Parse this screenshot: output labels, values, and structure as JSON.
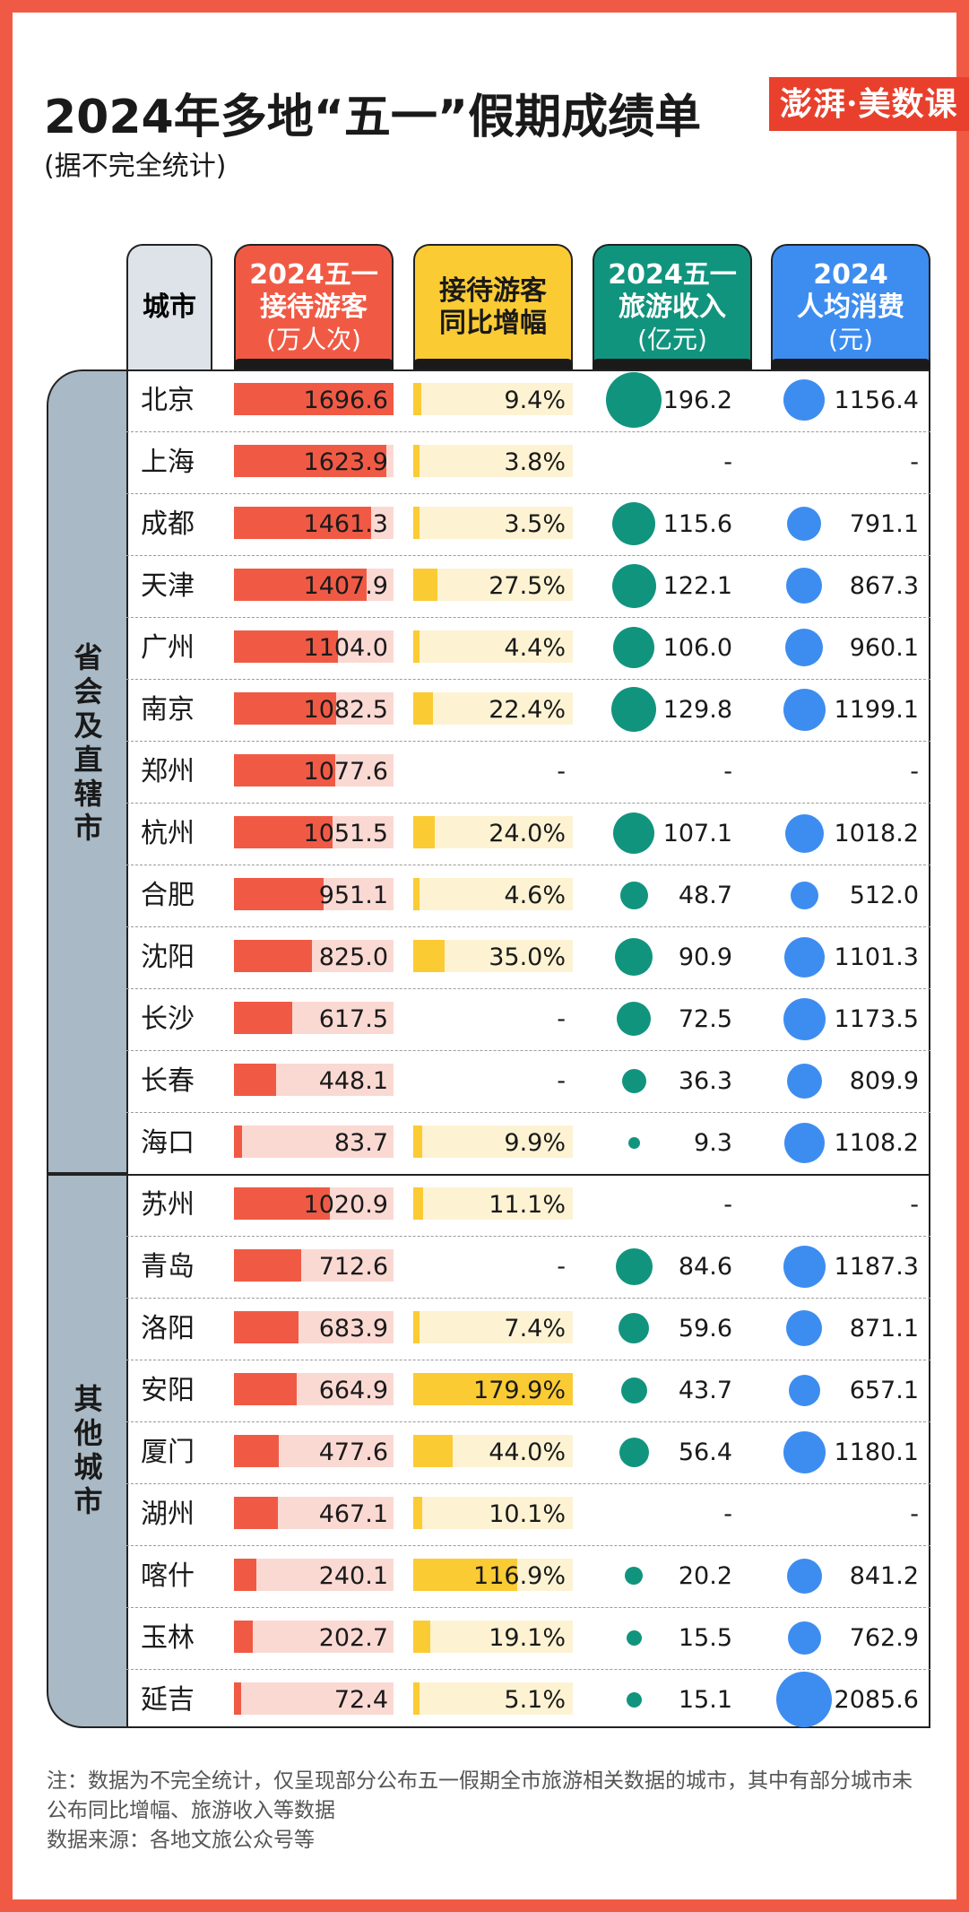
{
  "title": "2024年多地“五一”假期成绩单",
  "subtitle": "(据不完全统计)",
  "logo": "澎湃·美数课",
  "headers": {
    "city": "城市",
    "visitors": "2024五一\n接待游客",
    "visitors_unit": "(万人次)",
    "growth": "接待游客\n同比增幅",
    "revenue": "2024五一\n旅游收入",
    "revenue_unit": "(亿元)",
    "spend": "2024\n人均消费",
    "spend_unit": "(元)"
  },
  "groups": {
    "capital": "省会及直辖市",
    "other": "其他城市"
  },
  "colors": {
    "frame": "#f05a45",
    "visitors": "#f05a45",
    "growth": "#fbcb34",
    "revenue": "#11947e",
    "spend": "#3d8df0",
    "group": "#a9b9c5"
  },
  "note": "注：数据为不完全统计，仅呈现部分公布五一假期全市旅游相关数据的城市，其中有部分城市未公布同比增幅、旅游收入等数据",
  "source": "数据来源：各地文旅公众号等",
  "chart_data": {
    "type": "table",
    "columns": [
      "城市",
      "2024五一接待游客(万人次)",
      "接待游客同比增幅",
      "2024五一旅游收入(亿元)",
      "2024人均消费(元)"
    ],
    "rows": [
      {
        "group": "省会及直辖市",
        "city": "北京",
        "visitors": 1696.6,
        "visitors_label": "1696.6",
        "growth": 9.4,
        "growth_label": "9.4%",
        "revenue": 196.2,
        "revenue_label": "196.2",
        "spend": 1156.4,
        "spend_label": "1156.4"
      },
      {
        "group": "省会及直辖市",
        "city": "上海",
        "visitors": 1623.9,
        "visitors_label": "1623.9",
        "growth": 3.8,
        "growth_label": "3.8%",
        "revenue": null,
        "revenue_label": "-",
        "spend": null,
        "spend_label": "-"
      },
      {
        "group": "省会及直辖市",
        "city": "成都",
        "visitors": 1461.3,
        "visitors_label": "1461.3",
        "growth": 3.5,
        "growth_label": "3.5%",
        "revenue": 115.6,
        "revenue_label": "115.6",
        "spend": 791.1,
        "spend_label": "791.1"
      },
      {
        "group": "省会及直辖市",
        "city": "天津",
        "visitors": 1407.9,
        "visitors_label": "1407.9",
        "growth": 27.5,
        "growth_label": "27.5%",
        "revenue": 122.1,
        "revenue_label": "122.1",
        "spend": 867.3,
        "spend_label": "867.3"
      },
      {
        "group": "省会及直辖市",
        "city": "广州",
        "visitors": 1104.0,
        "visitors_label": "1104.0",
        "growth": 4.4,
        "growth_label": "4.4%",
        "revenue": 106.0,
        "revenue_label": "106.0",
        "spend": 960.1,
        "spend_label": "960.1"
      },
      {
        "group": "省会及直辖市",
        "city": "南京",
        "visitors": 1082.5,
        "visitors_label": "1082.5",
        "growth": 22.4,
        "growth_label": "22.4%",
        "revenue": 129.8,
        "revenue_label": "129.8",
        "spend": 1199.1,
        "spend_label": "1199.1"
      },
      {
        "group": "省会及直辖市",
        "city": "郑州",
        "visitors": 1077.6,
        "visitors_label": "1077.6",
        "growth": null,
        "growth_label": "-",
        "revenue": null,
        "revenue_label": "-",
        "spend": null,
        "spend_label": "-"
      },
      {
        "group": "省会及直辖市",
        "city": "杭州",
        "visitors": 1051.5,
        "visitors_label": "1051.5",
        "growth": 24.0,
        "growth_label": "24.0%",
        "revenue": 107.1,
        "revenue_label": "107.1",
        "spend": 1018.2,
        "spend_label": "1018.2"
      },
      {
        "group": "省会及直辖市",
        "city": "合肥",
        "visitors": 951.1,
        "visitors_label": "951.1",
        "growth": 4.6,
        "growth_label": "4.6%",
        "revenue": 48.7,
        "revenue_label": "48.7",
        "spend": 512.0,
        "spend_label": "512.0"
      },
      {
        "group": "省会及直辖市",
        "city": "沈阳",
        "visitors": 825.0,
        "visitors_label": "825.0",
        "growth": 35.0,
        "growth_label": "35.0%",
        "revenue": 90.9,
        "revenue_label": "90.9",
        "spend": 1101.3,
        "spend_label": "1101.3"
      },
      {
        "group": "省会及直辖市",
        "city": "长沙",
        "visitors": 617.5,
        "visitors_label": "617.5",
        "growth": null,
        "growth_label": "-",
        "revenue": 72.5,
        "revenue_label": "72.5",
        "spend": 1173.5,
        "spend_label": "1173.5"
      },
      {
        "group": "省会及直辖市",
        "city": "长春",
        "visitors": 448.1,
        "visitors_label": "448.1",
        "growth": null,
        "growth_label": "-",
        "revenue": 36.3,
        "revenue_label": "36.3",
        "spend": 809.9,
        "spend_label": "809.9"
      },
      {
        "group": "省会及直辖市",
        "city": "海口",
        "visitors": 83.7,
        "visitors_label": "83.7",
        "growth": 9.9,
        "growth_label": "9.9%",
        "revenue": 9.3,
        "revenue_label": "9.3",
        "spend": 1108.2,
        "spend_label": "1108.2"
      },
      {
        "group": "其他城市",
        "city": "苏州",
        "visitors": 1020.9,
        "visitors_label": "1020.9",
        "growth": 11.1,
        "growth_label": "11.1%",
        "revenue": null,
        "revenue_label": "-",
        "spend": null,
        "spend_label": "-"
      },
      {
        "group": "其他城市",
        "city": "青岛",
        "visitors": 712.6,
        "visitors_label": "712.6",
        "growth": null,
        "growth_label": "-",
        "revenue": 84.6,
        "revenue_label": "84.6",
        "spend": 1187.3,
        "spend_label": "1187.3"
      },
      {
        "group": "其他城市",
        "city": "洛阳",
        "visitors": 683.9,
        "visitors_label": "683.9",
        "growth": 7.4,
        "growth_label": "7.4%",
        "revenue": 59.6,
        "revenue_label": "59.6",
        "spend": 871.1,
        "spend_label": "871.1"
      },
      {
        "group": "其他城市",
        "city": "安阳",
        "visitors": 664.9,
        "visitors_label": "664.9",
        "growth": 179.9,
        "growth_label": "179.9%",
        "revenue": 43.7,
        "revenue_label": "43.7",
        "spend": 657.1,
        "spend_label": "657.1"
      },
      {
        "group": "其他城市",
        "city": "厦门",
        "visitors": 477.6,
        "visitors_label": "477.6",
        "growth": 44.0,
        "growth_label": "44.0%",
        "revenue": 56.4,
        "revenue_label": "56.4",
        "spend": 1180.1,
        "spend_label": "1180.1"
      },
      {
        "group": "其他城市",
        "city": "湖州",
        "visitors": 467.1,
        "visitors_label": "467.1",
        "growth": 10.1,
        "growth_label": "10.1%",
        "revenue": null,
        "revenue_label": "-",
        "spend": null,
        "spend_label": "-"
      },
      {
        "group": "其他城市",
        "city": "喀什",
        "visitors": 240.1,
        "visitors_label": "240.1",
        "growth": 116.9,
        "growth_label": "116.9%",
        "revenue": 20.2,
        "revenue_label": "20.2",
        "spend": 841.2,
        "spend_label": "841.2"
      },
      {
        "group": "其他城市",
        "city": "玉林",
        "visitors": 202.7,
        "visitors_label": "202.7",
        "growth": 19.1,
        "growth_label": "19.1%",
        "revenue": 15.5,
        "revenue_label": "15.5",
        "spend": 762.9,
        "spend_label": "762.9"
      },
      {
        "group": "其他城市",
        "city": "延吉",
        "visitors": 72.4,
        "visitors_label": "72.4",
        "growth": 5.1,
        "growth_label": "5.1%",
        "revenue": 15.1,
        "revenue_label": "15.1",
        "spend": 2085.6,
        "spend_label": "2085.6"
      }
    ]
  }
}
